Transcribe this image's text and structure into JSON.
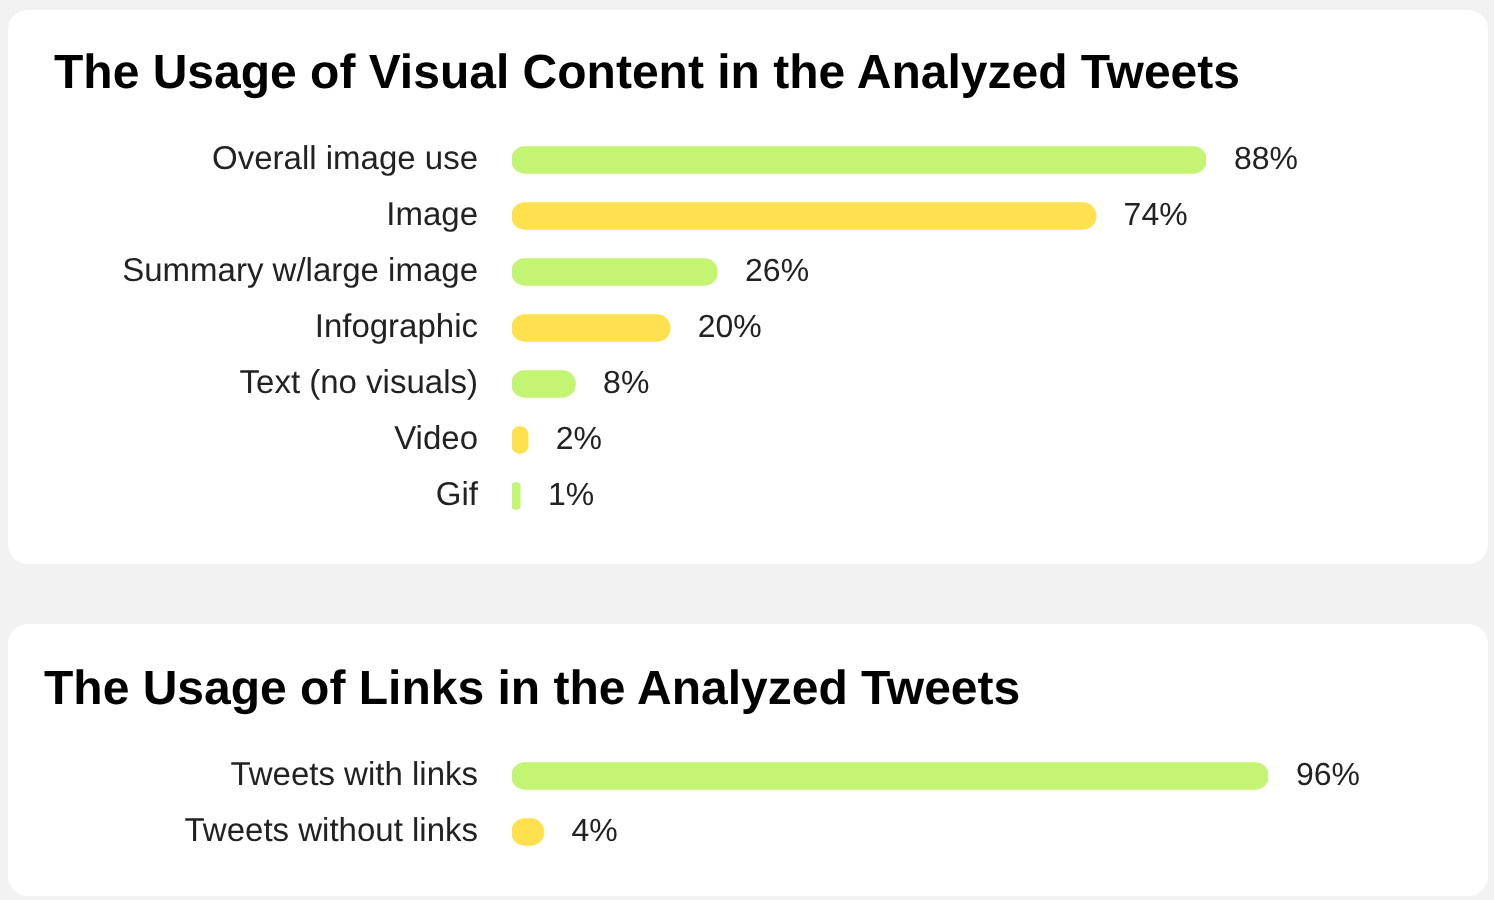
{
  "chart_data": [
    {
      "type": "bar",
      "orientation": "horizontal",
      "title": "The Usage of Visual Content in the Analyzed Tweets",
      "categories": [
        "Overall image use",
        "Image",
        "Summary w/large image",
        "Infographic",
        "Text (no visuals)",
        "Video",
        "Gif"
      ],
      "values": [
        88,
        74,
        26,
        20,
        8,
        2,
        1
      ],
      "colors": [
        "#c3f474",
        "#ffe14f",
        "#c3f474",
        "#ffe14f",
        "#c3f474",
        "#ffe14f",
        "#c3f474"
      ],
      "value_labels": [
        "88%",
        "74%",
        "26%",
        "20%",
        "8%",
        "2%",
        "1%"
      ],
      "tick_labels": "y"
    },
    {
      "type": "bar",
      "orientation": "horizontal",
      "title": "The Usage of Links in the Analyzed Tweets",
      "categories": [
        "Tweets with links",
        "Tweets without links"
      ],
      "values": [
        96,
        4
      ],
      "colors": [
        "#c3f474",
        "#ffe14f"
      ],
      "value_labels": [
        "96%",
        "4%"
      ],
      "tick_labels": "y"
    }
  ]
}
